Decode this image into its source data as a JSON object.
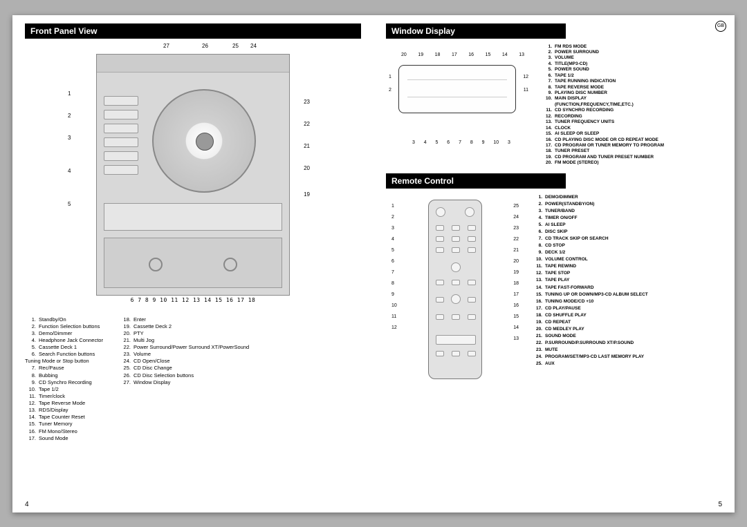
{
  "page_left_num": "4",
  "page_right_num": "5",
  "gb_badge": "GB",
  "front_panel": {
    "title": "Front Panel View",
    "top_callouts": [
      "27",
      "26",
      "25",
      "24"
    ],
    "left_callouts": [
      "1",
      "2",
      "3",
      "4",
      "5"
    ],
    "right_callouts": [
      "23",
      "22",
      "21",
      "20",
      "19"
    ],
    "bottom_callouts": "6   7     8     9     10   11 12 13 14  15 16  17    18",
    "legend_col1": [
      {
        "n": "1.",
        "t": "Standby/On"
      },
      {
        "n": "2.",
        "t": "Function Selection buttons"
      },
      {
        "n": "3.",
        "t": "Demo/Dimmer"
      },
      {
        "n": "4.",
        "t": "Headphone Jack Connector"
      },
      {
        "n": "5.",
        "t": "Cassette Deck 1"
      },
      {
        "n": "6.",
        "t": "Search Function buttons"
      },
      {
        "n": "",
        "t": "Tuning Mode or Stop button"
      },
      {
        "n": "7.",
        "t": "Rec/Pause"
      },
      {
        "n": "8.",
        "t": "Bubbing"
      },
      {
        "n": "9.",
        "t": "CD Synchro Recording"
      },
      {
        "n": "10.",
        "t": "Tape 1/2"
      },
      {
        "n": "11.",
        "t": "Timer/clock"
      },
      {
        "n": "12.",
        "t": "Tape Reverse Mode"
      },
      {
        "n": "13.",
        "t": "RDS/Display"
      },
      {
        "n": "14.",
        "t": "Tape Counter Reset"
      },
      {
        "n": "15.",
        "t": "Tuner Memory"
      },
      {
        "n": "16.",
        "t": "FM Mono/Stereo"
      },
      {
        "n": "17.",
        "t": "Sound Mode"
      }
    ],
    "legend_col2": [
      {
        "n": "18.",
        "t": "Enter"
      },
      {
        "n": "19.",
        "t": "Cassette Deck 2"
      },
      {
        "n": "20.",
        "t": "PTY"
      },
      {
        "n": "21.",
        "t": "Multi Jog"
      },
      {
        "n": "22.",
        "t": "Power Surround/Power Surround XT/PowerSound"
      },
      {
        "n": "23.",
        "t": "Volume"
      },
      {
        "n": "24.",
        "t": "CD Open/Close"
      },
      {
        "n": "25.",
        "t": "CD Disc Change"
      },
      {
        "n": "26.",
        "t": "CD Disc Selection buttons"
      },
      {
        "n": "27.",
        "t": "Window Display"
      }
    ]
  },
  "window_display": {
    "title": "Window Display",
    "top_callouts": [
      "20",
      "19",
      "18",
      "17",
      "16",
      "15",
      "14",
      "13"
    ],
    "left_callouts": [
      "1",
      "2"
    ],
    "right_callouts": [
      "12",
      "11"
    ],
    "bottom_callouts": [
      "3",
      "4",
      "5",
      "6",
      "7",
      "8",
      "9",
      "10",
      "3"
    ],
    "legend": [
      {
        "n": "1.",
        "t": "FM RDS MODE"
      },
      {
        "n": "2.",
        "t": "POWER SURROUND"
      },
      {
        "n": "3.",
        "t": "VOLUME"
      },
      {
        "n": "4.",
        "t": "TITLE(MP3-CD)"
      },
      {
        "n": "5.",
        "t": "POWER SOUND"
      },
      {
        "n": "6.",
        "t": "TAPE 1/2"
      },
      {
        "n": "7.",
        "t": "TAPE RUNNING INDICATION"
      },
      {
        "n": "8.",
        "t": "TAPE REVERSE MODE"
      },
      {
        "n": "9.",
        "t": "PLAYING DISC NUMBER"
      },
      {
        "n": "10.",
        "t": "MAIN DISPLAY"
      },
      {
        "n": "",
        "t": "(FUNCTION,FREQUENCY,TIME,ETC.)"
      },
      {
        "n": "11.",
        "t": "CD SYNCHRO RECORDING"
      },
      {
        "n": "12.",
        "t": "RECORDING"
      },
      {
        "n": "13.",
        "t": "TUNER FREQUENCY UNITS"
      },
      {
        "n": "14.",
        "t": "CLOCK"
      },
      {
        "n": "15.",
        "t": "AI SLEEP OR SLEEP"
      },
      {
        "n": "16.",
        "t": "CD PLAYING DISC MODE OR CD REPEAT MODE"
      },
      {
        "n": "17.",
        "t": "CD PROGRAM OR TUNER MEMORY TO PROGRAM"
      },
      {
        "n": "18.",
        "t": "TUNER PRESET"
      },
      {
        "n": "19.",
        "t": "CD PROGRAM AND TUNER PRESET NUMBER"
      },
      {
        "n": "20.",
        "t": "FM MODE (STEREO)"
      }
    ]
  },
  "remote": {
    "title": "Remote Control",
    "left_callouts": [
      "1",
      "2",
      "3",
      "4",
      "5",
      "6",
      "7",
      "8",
      "9",
      "10",
      "11",
      "12"
    ],
    "right_callouts": [
      "25",
      "24",
      "23",
      "22",
      "21",
      "20",
      "19",
      "18",
      "17",
      "16",
      "15",
      "14",
      "13"
    ],
    "legend": [
      {
        "n": "1.",
        "t": "DEMO/DIMMER"
      },
      {
        "n": "2.",
        "t": "POWER(STANDBY/ON)"
      },
      {
        "n": "3.",
        "t": "TUNER/BAND"
      },
      {
        "n": "4.",
        "t": "TIMER ON/OFF"
      },
      {
        "n": "5.",
        "t": "AI SLEEP"
      },
      {
        "n": "6.",
        "t": "DISC SKIP"
      },
      {
        "n": "7.",
        "t": "CD TRACK SKIP OR SEARCH"
      },
      {
        "n": "8.",
        "t": "CD STOP"
      },
      {
        "n": "9.",
        "t": "DECK 1/2"
      },
      {
        "n": "10.",
        "t": "VOLUME CONTROL"
      },
      {
        "n": "11.",
        "t": "TAPE REWIND"
      },
      {
        "n": "12.",
        "t": "TAPE STOP"
      },
      {
        "n": "13.",
        "t": "TAPE PLAY"
      },
      {
        "n": "14.",
        "t": "TAPE FAST-FORWARD"
      },
      {
        "n": "15.",
        "t": "TUNING UP OR DOWN/MP3-CD ALBUM SELECT"
      },
      {
        "n": "16.",
        "t": "TUNING MODE/CD +10"
      },
      {
        "n": "17.",
        "t": "CD PLAY/PAUSE"
      },
      {
        "n": "18.",
        "t": "CD SHUFFLE PLAY"
      },
      {
        "n": "19.",
        "t": "CD REPEAT"
      },
      {
        "n": "20.",
        "t": "CD MEDLEY PLAY"
      },
      {
        "n": "21.",
        "t": "SOUND MODE"
      },
      {
        "n": "22.",
        "t": "P.SURROUND/P.SURROUND XT/P.SOUND"
      },
      {
        "n": "23.",
        "t": "MUTE"
      },
      {
        "n": "24.",
        "t": "PROGRAM/SET/MP3-CD LAST MEMORY PLAY"
      },
      {
        "n": "25.",
        "t": "AUX"
      }
    ]
  }
}
